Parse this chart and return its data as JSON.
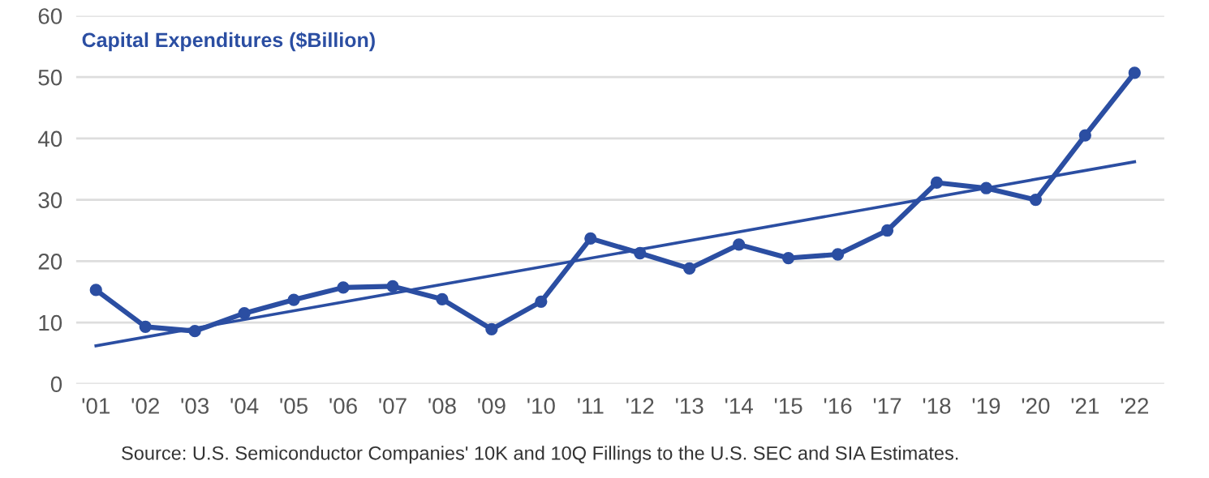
{
  "chart_data": {
    "type": "line",
    "title": "Capital Expenditures ($Billion)",
    "x": [
      2001,
      2002,
      2003,
      2004,
      2005,
      2006,
      2007,
      2008,
      2009,
      2010,
      2011,
      2012,
      2013,
      2014,
      2015,
      2016,
      2017,
      2018,
      2019,
      2020,
      2021,
      2022
    ],
    "series": [
      {
        "color": "#2b4ea2",
        "marker": "circle",
        "values": [
          15.3,
          9.3,
          8.6,
          11.5,
          13.7,
          15.7,
          15.9,
          13.8,
          8.9,
          13.4,
          23.7,
          21.3,
          18.8,
          22.7,
          20.5,
          21.1,
          25.0,
          32.8,
          31.9,
          30.0,
          40.5,
          50.7
        ]
      },
      {
        "type": "line",
        "color": "#2b4ea2",
        "marker": "none",
        "x": [
          2001,
          2022
        ],
        "values": [
          6.2,
          36.2
        ]
      }
    ],
    "xlim": [
      2000.6,
      2022.6
    ],
    "xticks": [
      {
        "value": 2001,
        "label": "'01"
      },
      {
        "value": 2002,
        "label": "'02"
      },
      {
        "value": 2003,
        "label": "'03"
      },
      {
        "value": 2004,
        "label": "'04"
      },
      {
        "value": 2005,
        "label": "'05"
      },
      {
        "value": 2006,
        "label": "'06"
      },
      {
        "value": 2007,
        "label": "'07"
      },
      {
        "value": 2008,
        "label": "'08"
      },
      {
        "value": 2009,
        "label": "'09"
      },
      {
        "value": 2010,
        "label": "'10"
      },
      {
        "value": 2011,
        "label": "'11"
      },
      {
        "value": 2012,
        "label": "'12"
      },
      {
        "value": 2013,
        "label": "'13"
      },
      {
        "value": 2014,
        "label": "'14"
      },
      {
        "value": 2015,
        "label": "'15"
      },
      {
        "value": 2016,
        "label": "'16"
      },
      {
        "value": 2017,
        "label": "'17"
      },
      {
        "value": 2018,
        "label": "'18"
      },
      {
        "value": 2019,
        "label": "'19"
      },
      {
        "value": 2020,
        "label": "'20"
      },
      {
        "value": 2021,
        "label": "'21"
      },
      {
        "value": 2022,
        "label": "'22"
      }
    ],
    "ylim": [
      0,
      60
    ],
    "yticks": [
      0,
      10,
      20,
      30,
      40,
      50,
      60
    ],
    "grid": "y",
    "annotations": [
      "Source: U.S. Semiconductor Companies' 10K and 10Q Fillings to the U.S. SEC and SIA Estimates."
    ]
  }
}
